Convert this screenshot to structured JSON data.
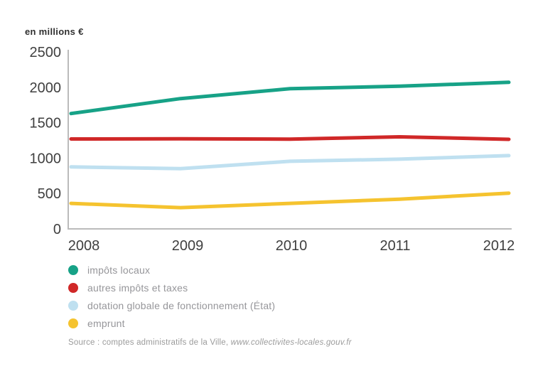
{
  "chart_data": {
    "type": "line",
    "title": "",
    "units_label": "en millions €",
    "x_labels": [
      "2008",
      "2009",
      "2010",
      "2011",
      "2012"
    ],
    "y_ticks": [
      0,
      500,
      1000,
      1500,
      2000,
      2500
    ],
    "ylim": [
      0,
      2500
    ],
    "grid": false,
    "legend_position": "below-left",
    "axis_color": "#bbbbbb",
    "tick_text_color": "#3f3f3f",
    "series": [
      {
        "name": "impôts locaux",
        "color": "#17a287",
        "values": [
          1630,
          1840,
          1980,
          2015,
          2070
        ]
      },
      {
        "name": "autres impôts et taxes",
        "color": "#d02828",
        "values": [
          1270,
          1272,
          1268,
          1300,
          1265
        ]
      },
      {
        "name": "dotation globale de fonctionnement (État)",
        "color": "#bfe0f0",
        "values": [
          875,
          850,
          955,
          985,
          1035
        ]
      },
      {
        "name": "emprunt",
        "color": "#f5c32f",
        "values": [
          360,
          300,
          360,
          420,
          505
        ]
      }
    ]
  },
  "source": {
    "prefix": "Source : comptes administratifs de la Ville, ",
    "url": "www.collectivites-locales.gouv.fr"
  }
}
